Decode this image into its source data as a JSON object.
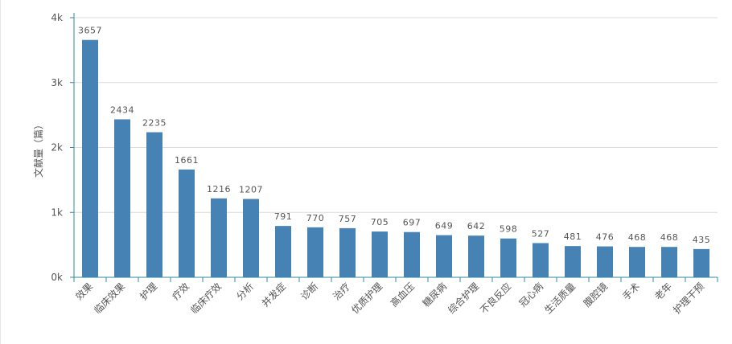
{
  "chart_data": {
    "type": "bar",
    "ylabel": "文献量（篇）",
    "ylim": [
      0,
      4000
    ],
    "yticks": [
      "0k",
      "1k",
      "2k",
      "3k",
      "4k"
    ],
    "grid": true,
    "categories": [
      "效果",
      "临床效果",
      "护理",
      "疗效",
      "临床疗效",
      "分析",
      "并发症",
      "诊断",
      "治疗",
      "优质护理",
      "高血压",
      "糖尿病",
      "综合护理",
      "不良反应",
      "冠心病",
      "生活质量",
      "腹腔镜",
      "手术",
      "老年",
      "护理干预"
    ],
    "values": [
      3657,
      2434,
      2235,
      1661,
      1216,
      1207,
      791,
      770,
      757,
      705,
      697,
      649,
      642,
      598,
      527,
      481,
      476,
      468,
      468,
      435
    ],
    "colors": {
      "bar": "#4682b4",
      "axis": "#2f8aa1",
      "grid": "#dcdcdc",
      "text": "#555555"
    }
  }
}
